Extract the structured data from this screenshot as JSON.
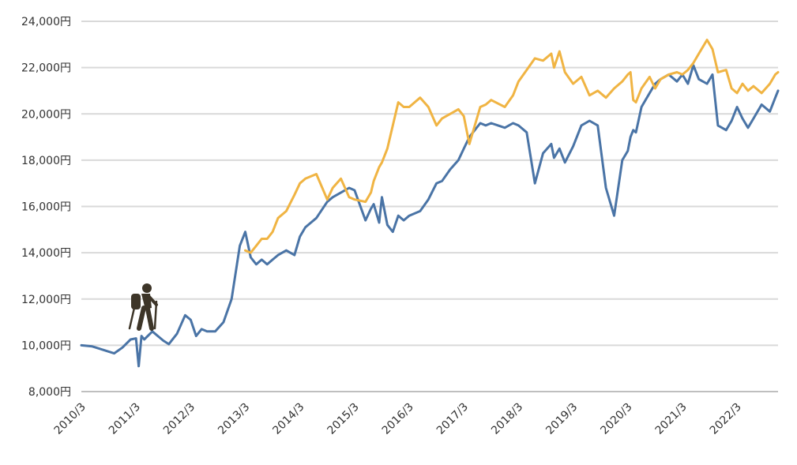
{
  "chart_data": {
    "type": "line",
    "title": "",
    "xlabel": "",
    "ylabel": "",
    "y_unit_suffix": "円",
    "ylim": [
      8000,
      24000
    ],
    "y_ticks": [
      8000,
      10000,
      12000,
      14000,
      16000,
      18000,
      20000,
      22000,
      24000
    ],
    "y_tick_labels": [
      "8,000円",
      "10,000円",
      "12,000円",
      "14,000円",
      "16,000円",
      "18,000円",
      "20,000円",
      "22,000円",
      "24,000円"
    ],
    "x_tick_labels": [
      "2010/3",
      "2011/3",
      "2012/3",
      "2013/3",
      "2014/3",
      "2015/3",
      "2016/3",
      "2017/3",
      "2018/3",
      "2019/3",
      "2020/3",
      "2021/3",
      "2022/3"
    ],
    "x_range_years": [
      2010.0,
      2022.75
    ],
    "grid": true,
    "legend": "none",
    "icon": "hiker-icon",
    "colors": {
      "series_blue": "#4a74a6",
      "series_orange": "#f0b443",
      "grid": "#d9d9d9",
      "icon": "#3d3528"
    },
    "series": [
      {
        "color": "#4a74a6",
        "x": [
          2010.0,
          2010.2,
          2010.4,
          2010.6,
          2010.75,
          2010.9,
          2011.0,
          2011.05,
          2011.1,
          2011.15,
          2011.3,
          2011.5,
          2011.6,
          2011.75,
          2011.9,
          2012.0,
          2012.1,
          2012.2,
          2012.3,
          2012.45,
          2012.6,
          2012.75,
          2012.9,
          2013.0,
          2013.1,
          2013.2,
          2013.3,
          2013.4,
          2013.5,
          2013.6,
          2013.75,
          2013.9,
          2014.0,
          2014.1,
          2014.3,
          2014.5,
          2014.6,
          2014.75,
          2014.9,
          2015.0,
          2015.2,
          2015.3,
          2015.35,
          2015.45,
          2015.5,
          2015.6,
          2015.7,
          2015.8,
          2015.9,
          2016.0,
          2016.2,
          2016.35,
          2016.5,
          2016.6,
          2016.75,
          2016.9,
          2017.0,
          2017.1,
          2017.3,
          2017.4,
          2017.5,
          2017.75,
          2017.9,
          2018.0,
          2018.15,
          2018.3,
          2018.45,
          2018.6,
          2018.65,
          2018.75,
          2018.85,
          2019.0,
          2019.15,
          2019.3,
          2019.45,
          2019.6,
          2019.75,
          2019.9,
          2020.0,
          2020.05,
          2020.1,
          2020.15,
          2020.25,
          2020.4,
          2020.5,
          2020.6,
          2020.75,
          2020.9,
          2021.0,
          2021.1,
          2021.2,
          2021.3,
          2021.45,
          2021.55,
          2021.65,
          2021.8,
          2021.9,
          2022.0,
          2022.1,
          2022.2,
          2022.3,
          2022.45,
          2022.6,
          2022.7,
          2022.75
        ],
        "y": [
          10000,
          9950,
          9800,
          9650,
          9900,
          10250,
          10300,
          9100,
          10400,
          10250,
          10600,
          10200,
          10050,
          10500,
          11300,
          11100,
          10400,
          10700,
          10600,
          10600,
          11000,
          12000,
          14300,
          14900,
          13800,
          13500,
          13700,
          13500,
          13700,
          13900,
          14100,
          13900,
          14700,
          15100,
          15500,
          16200,
          16400,
          16600,
          16800,
          16700,
          15400,
          15900,
          16100,
          15300,
          16400,
          15200,
          14900,
          15600,
          15400,
          15600,
          15800,
          16300,
          17000,
          17100,
          17600,
          18000,
          18500,
          19000,
          19600,
          19500,
          19600,
          19400,
          19600,
          19500,
          19200,
          17000,
          18300,
          18700,
          18100,
          18500,
          17900,
          18600,
          19500,
          19700,
          19500,
          16800,
          15600,
          18000,
          18400,
          19000,
          19300,
          19200,
          20300,
          20900,
          21300,
          21500,
          21700,
          21400,
          21700,
          21300,
          22100,
          21500,
          21300,
          21700,
          19500,
          19300,
          19700,
          20300,
          19800,
          19400,
          19800,
          20400,
          20100,
          20700,
          21000
        ]
      },
      {
        "color": "#f0b443",
        "x": [
          2013.0,
          2013.1,
          2013.2,
          2013.3,
          2013.4,
          2013.5,
          2013.6,
          2013.75,
          2013.9,
          2014.0,
          2014.1,
          2014.3,
          2014.5,
          2014.6,
          2014.75,
          2014.9,
          2015.0,
          2015.2,
          2015.3,
          2015.35,
          2015.45,
          2015.5,
          2015.6,
          2015.7,
          2015.8,
          2015.9,
          2016.0,
          2016.2,
          2016.35,
          2016.5,
          2016.6,
          2016.75,
          2016.9,
          2017.0,
          2017.1,
          2017.3,
          2017.4,
          2017.5,
          2017.75,
          2017.9,
          2018.0,
          2018.15,
          2018.3,
          2018.45,
          2018.6,
          2018.65,
          2018.75,
          2018.85,
          2019.0,
          2019.15,
          2019.3,
          2019.45,
          2019.6,
          2019.75,
          2019.9,
          2020.0,
          2020.05,
          2020.1,
          2020.15,
          2020.25,
          2020.4,
          2020.5,
          2020.6,
          2020.75,
          2020.9,
          2021.0,
          2021.1,
          2021.2,
          2021.3,
          2021.45,
          2021.55,
          2021.65,
          2021.8,
          2021.9,
          2022.0,
          2022.1,
          2022.2,
          2022.3,
          2022.45,
          2022.6,
          2022.7,
          2022.75
        ],
        "y": [
          14100,
          14000,
          14300,
          14600,
          14600,
          14900,
          15500,
          15800,
          16500,
          17000,
          17200,
          17400,
          16300,
          16800,
          17200,
          16400,
          16300,
          16200,
          16600,
          17100,
          17700,
          17900,
          18500,
          19500,
          20500,
          20300,
          20300,
          20700,
          20300,
          19500,
          19800,
          20000,
          20200,
          19900,
          18700,
          20300,
          20400,
          20600,
          20300,
          20800,
          21400,
          21900,
          22400,
          22300,
          22600,
          22000,
          22700,
          21800,
          21300,
          21600,
          20800,
          21000,
          20700,
          21100,
          21400,
          21700,
          21800,
          20600,
          20500,
          21100,
          21600,
          21100,
          21500,
          21700,
          21800,
          21700,
          21900,
          22200,
          22600,
          23200,
          22800,
          21800,
          21900,
          21100,
          20900,
          21300,
          21000,
          21200,
          20900,
          21300,
          21700,
          21800
        ]
      }
    ]
  }
}
